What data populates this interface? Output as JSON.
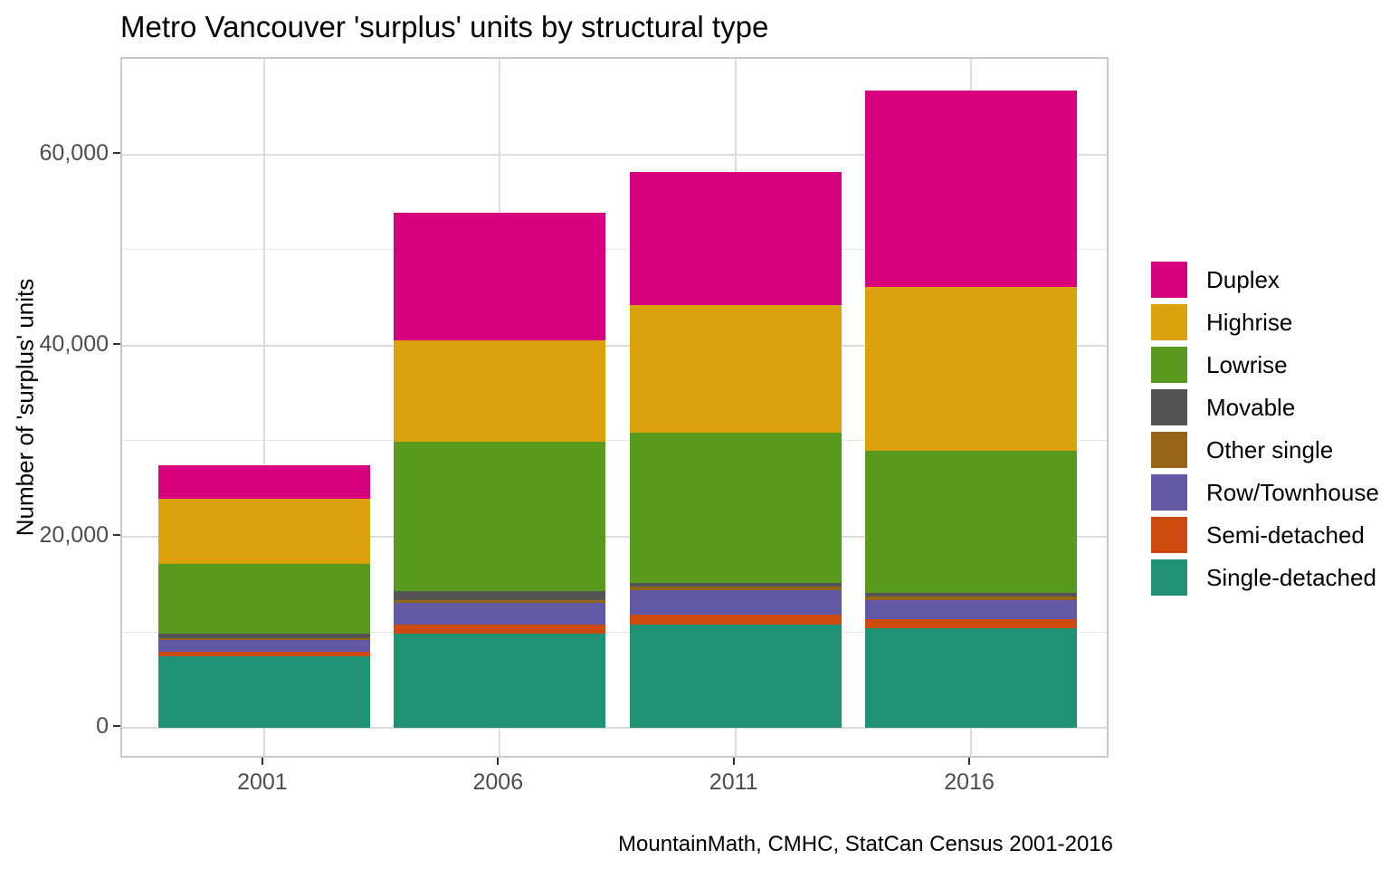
{
  "chart_data": {
    "type": "bar",
    "stacked": true,
    "title": "Metro Vancouver 'surplus' units by structural type",
    "caption": "MountainMath, CMHC, StatCan Census 2001-2016",
    "xlabel": "",
    "ylabel": "Number of 'surplus' units",
    "categories": [
      "2001",
      "2006",
      "2011",
      "2016"
    ],
    "series": [
      {
        "name": "Duplex",
        "color": "#D8017D",
        "values": [
          3500,
          13350,
          13900,
          20550
        ]
      },
      {
        "name": "Highrise",
        "color": "#DBA20D",
        "values": [
          6800,
          10650,
          13350,
          17150
        ]
      },
      {
        "name": "Lowrise",
        "color": "#579A1D",
        "values": [
          7350,
          15600,
          15700,
          14800
        ]
      },
      {
        "name": "Movable",
        "color": "#545454",
        "values": [
          450,
          900,
          450,
          450
        ]
      },
      {
        "name": "Other single",
        "color": "#956414",
        "values": [
          200,
          300,
          300,
          300
        ]
      },
      {
        "name": "Row/Townhouse",
        "color": "#6159A6",
        "values": [
          1250,
          2300,
          2600,
          2000
        ]
      },
      {
        "name": "Semi-detached",
        "color": "#CC4A0F",
        "values": [
          450,
          900,
          1050,
          1000
        ]
      },
      {
        "name": "Single-detached",
        "color": "#1F9274",
        "values": [
          7500,
          9900,
          10800,
          10400
        ]
      }
    ],
    "y_ticks": [
      0,
      20000,
      40000,
      60000
    ],
    "y_minor_ticks": [
      10000,
      30000,
      50000
    ],
    "ylim": [
      -3300,
      70000
    ],
    "grid": true,
    "legend_position": "right"
  },
  "style": {
    "grid_major_color": "#DCDCDC",
    "grid_minor_color": "#E4E4E4",
    "panel_border_color": "#C9C9C9",
    "tick_color": "#333333",
    "axis_text_color": "#4D4D4D",
    "text_color": "#000000",
    "background": "#FFFFFF"
  }
}
